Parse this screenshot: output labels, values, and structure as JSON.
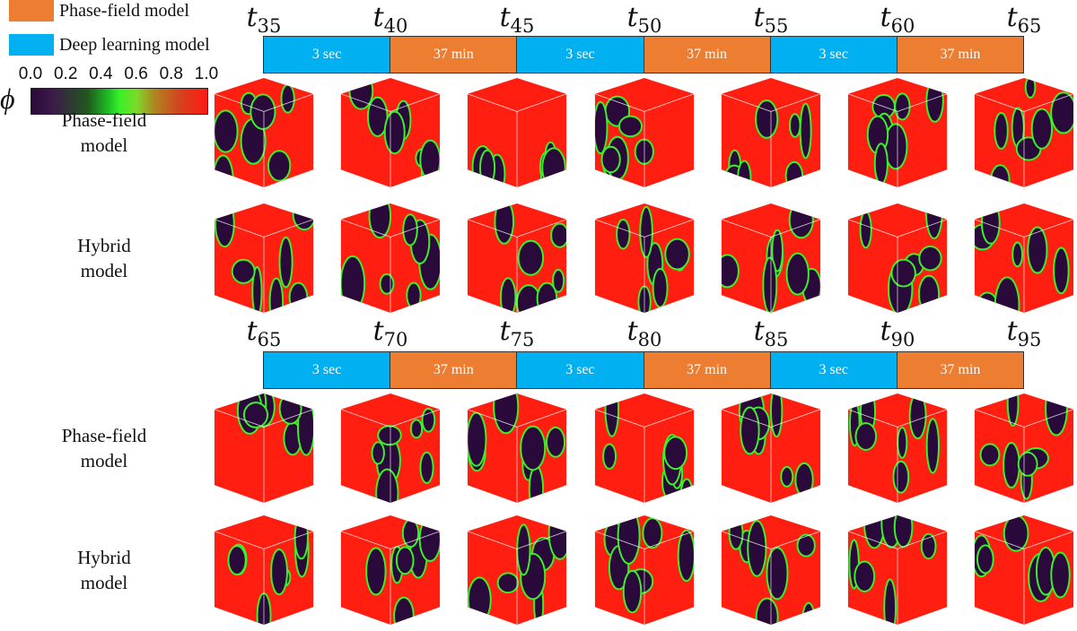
{
  "legend": {
    "phase_field": {
      "label": "Phase-field model",
      "color": "#ED7D31"
    },
    "deep_learning": {
      "label": "Deep learning model",
      "color": "#00B0F0"
    }
  },
  "colorbar": {
    "symbol": "ϕ",
    "ticks": [
      "0.0",
      "0.2",
      "0.4",
      "0.6",
      "0.8",
      "1.0"
    ]
  },
  "panel1": {
    "time_labels": [
      {
        "t": "t",
        "sub": "35"
      },
      {
        "t": "t",
        "sub": "40"
      },
      {
        "t": "t",
        "sub": "45"
      },
      {
        "t": "t",
        "sub": "50"
      },
      {
        "t": "t",
        "sub": "55"
      },
      {
        "t": "t",
        "sub": "60"
      },
      {
        "t": "t",
        "sub": "65"
      }
    ],
    "segments": [
      {
        "label": "3 sec",
        "type": "deep_learning"
      },
      {
        "label": "37 min",
        "type": "phase_field"
      },
      {
        "label": "3 sec",
        "type": "deep_learning"
      },
      {
        "label": "37 min",
        "type": "phase_field"
      },
      {
        "label": "3 sec",
        "type": "deep_learning"
      },
      {
        "label": "37 min",
        "type": "phase_field"
      }
    ],
    "row_labels": [
      [
        "Phase-field",
        "model"
      ],
      [
        "Hybrid",
        "model"
      ]
    ]
  },
  "panel2": {
    "time_labels": [
      {
        "t": "t",
        "sub": "65"
      },
      {
        "t": "t",
        "sub": "70"
      },
      {
        "t": "t",
        "sub": "75"
      },
      {
        "t": "t",
        "sub": "80"
      },
      {
        "t": "t",
        "sub": "85"
      },
      {
        "t": "t",
        "sub": "90"
      },
      {
        "t": "t",
        "sub": "95"
      }
    ],
    "segments": [
      {
        "label": "3 sec",
        "type": "deep_learning"
      },
      {
        "label": "37 min",
        "type": "phase_field"
      },
      {
        "label": "3 sec",
        "type": "deep_learning"
      },
      {
        "label": "37 min",
        "type": "phase_field"
      },
      {
        "label": "3 sec",
        "type": "deep_learning"
      },
      {
        "label": "37 min",
        "type": "phase_field"
      }
    ],
    "row_labels": [
      [
        "Phase-field",
        "model"
      ],
      [
        "Hybrid",
        "model"
      ]
    ]
  },
  "colors": {
    "phase_red": "#FF1E10",
    "matrix_purple": "#2A0A3A",
    "interface_green": "#3CF02A"
  }
}
